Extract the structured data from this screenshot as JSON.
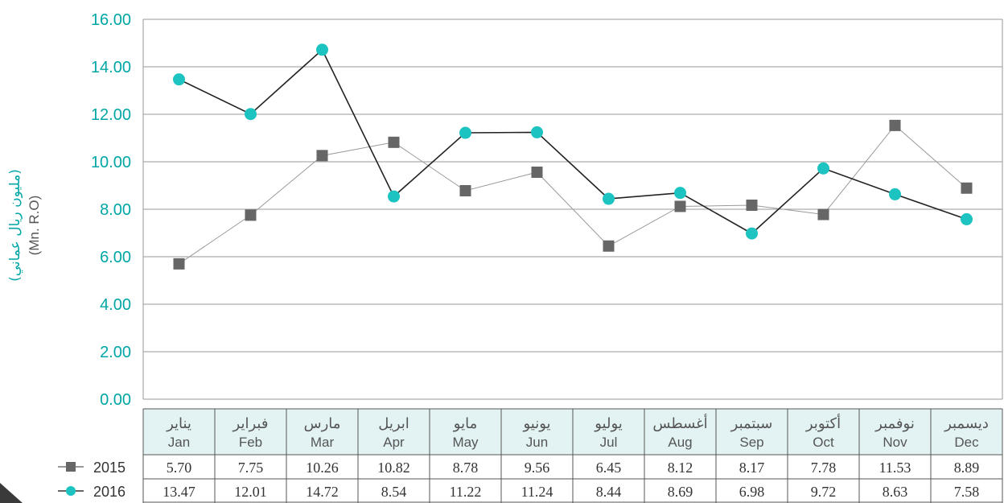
{
  "ylabel_ar": "(مليون ريال عماني)",
  "ylabel_en": "(Mn. R.O)",
  "chart_data": {
    "type": "line",
    "categories_ar": [
      "يناير",
      "فبراير",
      "مارس",
      "ابريل",
      "مايو",
      "يونيو",
      "يوليو",
      "أغسطس",
      "سبتمبر",
      "أكتوبر",
      "نوفمبر",
      "ديسمبر"
    ],
    "categories": [
      "Jan",
      "Feb",
      "Mar",
      "Apr",
      "May",
      "Jun",
      "Jul",
      "Aug",
      "Sep",
      "Oct",
      "Nov",
      "Dec"
    ],
    "ylim": [
      0,
      16
    ],
    "yticks": [
      "0.00",
      "2.00",
      "4.00",
      "6.00",
      "8.00",
      "10.00",
      "12.00",
      "14.00",
      "16.00"
    ],
    "grid": true,
    "series": [
      {
        "name": "2015",
        "marker": "square",
        "color": "#666666",
        "line": "#999999",
        "values": [
          5.7,
          7.75,
          10.26,
          10.82,
          8.78,
          9.56,
          6.45,
          8.12,
          8.17,
          7.78,
          11.53,
          8.89
        ],
        "labels": [
          "5.70",
          "7.75",
          "10.26",
          "10.82",
          "8.78",
          "9.56",
          "6.45",
          "8.12",
          "8.17",
          "7.78",
          "11.53",
          "8.89"
        ]
      },
      {
        "name": "2016",
        "marker": "circle",
        "color": "#1cc3c1",
        "line": "#222222",
        "values": [
          13.47,
          12.01,
          14.72,
          8.54,
          11.22,
          11.24,
          8.44,
          8.69,
          6.98,
          9.72,
          8.63,
          7.58
        ],
        "labels": [
          "13.47",
          "12.01",
          "14.72",
          "8.54",
          "11.22",
          "11.24",
          "8.44",
          "8.69",
          "6.98",
          "9.72",
          "8.63",
          "7.58"
        ]
      }
    ]
  },
  "colors": {
    "accent": "#1cc3c1",
    "tick_text": "#00a6a6",
    "header_bg": "#e3f3f3",
    "grid": "#999999"
  }
}
